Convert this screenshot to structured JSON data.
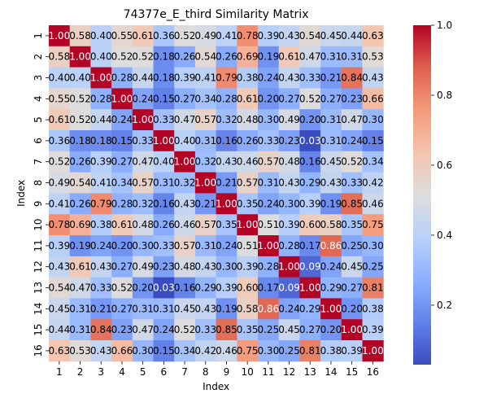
{
  "chart_data": {
    "type": "heatmap",
    "title": "74377e_E_third Similarity Matrix",
    "xlabel": "Index",
    "ylabel": "Index",
    "x_categories": [
      "1",
      "2",
      "3",
      "4",
      "5",
      "6",
      "7",
      "8",
      "9",
      "10",
      "11",
      "12",
      "13",
      "14",
      "15",
      "16"
    ],
    "y_categories": [
      "1",
      "2",
      "3",
      "4",
      "5",
      "6",
      "7",
      "8",
      "9",
      "10",
      "11",
      "12",
      "13",
      "14",
      "15",
      "16"
    ],
    "colormap": "coolwarm",
    "colorbar": {
      "min": 0.03,
      "max": 1.0,
      "ticks": [
        "0.2",
        "0.4",
        "0.6",
        "0.8",
        "1.0"
      ],
      "tick_values": [
        0.2,
        0.4,
        0.6,
        0.8,
        1.0
      ]
    },
    "values": [
      [
        1.0,
        0.58,
        0.4,
        0.55,
        0.61,
        0.36,
        0.52,
        0.49,
        0.41,
        0.78,
        0.39,
        0.43,
        0.54,
        0.45,
        0.44,
        0.63
      ],
      [
        0.58,
        1.0,
        0.4,
        0.52,
        0.52,
        0.18,
        0.26,
        0.54,
        0.26,
        0.69,
        0.19,
        0.61,
        0.47,
        0.31,
        0.31,
        0.53
      ],
      [
        0.4,
        0.4,
        1.0,
        0.28,
        0.44,
        0.18,
        0.39,
        0.41,
        0.79,
        0.38,
        0.24,
        0.43,
        0.33,
        0.21,
        0.84,
        0.43
      ],
      [
        0.55,
        0.52,
        0.28,
        1.0,
        0.24,
        0.15,
        0.27,
        0.34,
        0.28,
        0.61,
        0.2,
        0.27,
        0.52,
        0.27,
        0.23,
        0.66
      ],
      [
        0.61,
        0.52,
        0.44,
        0.24,
        1.0,
        0.33,
        0.47,
        0.57,
        0.32,
        0.48,
        0.3,
        0.49,
        0.2,
        0.31,
        0.47,
        0.3
      ],
      [
        0.36,
        0.18,
        0.18,
        0.15,
        0.33,
        1.0,
        0.4,
        0.31,
        0.16,
        0.26,
        0.33,
        0.23,
        0.03,
        0.31,
        0.24,
        0.15
      ],
      [
        0.52,
        0.26,
        0.39,
        0.27,
        0.47,
        0.4,
        1.0,
        0.32,
        0.43,
        0.46,
        0.57,
        0.48,
        0.16,
        0.45,
        0.52,
        0.34
      ],
      [
        0.49,
        0.54,
        0.41,
        0.34,
        0.57,
        0.31,
        0.32,
        1.0,
        0.21,
        0.57,
        0.31,
        0.43,
        0.29,
        0.43,
        0.33,
        0.42
      ],
      [
        0.41,
        0.26,
        0.79,
        0.28,
        0.32,
        0.16,
        0.43,
        0.21,
        1.0,
        0.35,
        0.24,
        0.3,
        0.39,
        0.19,
        0.85,
        0.46
      ],
      [
        0.78,
        0.69,
        0.38,
        0.61,
        0.48,
        0.26,
        0.46,
        0.57,
        0.35,
        1.0,
        0.51,
        0.39,
        0.6,
        0.58,
        0.35,
        0.75
      ],
      [
        0.39,
        0.19,
        0.24,
        0.2,
        0.3,
        0.33,
        0.57,
        0.31,
        0.24,
        0.51,
        1.0,
        0.28,
        0.17,
        0.86,
        0.25,
        0.3
      ],
      [
        0.43,
        0.61,
        0.43,
        0.27,
        0.49,
        0.23,
        0.48,
        0.43,
        0.3,
        0.39,
        0.28,
        1.0,
        0.09,
        0.24,
        0.45,
        0.25
      ],
      [
        0.54,
        0.47,
        0.33,
        0.52,
        0.2,
        0.03,
        0.16,
        0.29,
        0.39,
        0.6,
        0.17,
        0.09,
        1.0,
        0.29,
        0.27,
        0.81
      ],
      [
        0.45,
        0.31,
        0.21,
        0.27,
        0.31,
        0.31,
        0.45,
        0.43,
        0.19,
        0.58,
        0.86,
        0.24,
        0.29,
        1.0,
        0.2,
        0.38
      ],
      [
        0.44,
        0.31,
        0.84,
        0.23,
        0.47,
        0.24,
        0.52,
        0.33,
        0.85,
        0.35,
        0.25,
        0.45,
        0.27,
        0.2,
        1.0,
        0.39
      ],
      [
        0.63,
        0.53,
        0.43,
        0.66,
        0.3,
        0.15,
        0.34,
        0.42,
        0.46,
        0.75,
        0.3,
        0.25,
        0.81,
        0.38,
        0.39,
        1.0
      ]
    ],
    "cell_label_format": "2dp",
    "grid": false,
    "legend": "colorbar-right"
  }
}
